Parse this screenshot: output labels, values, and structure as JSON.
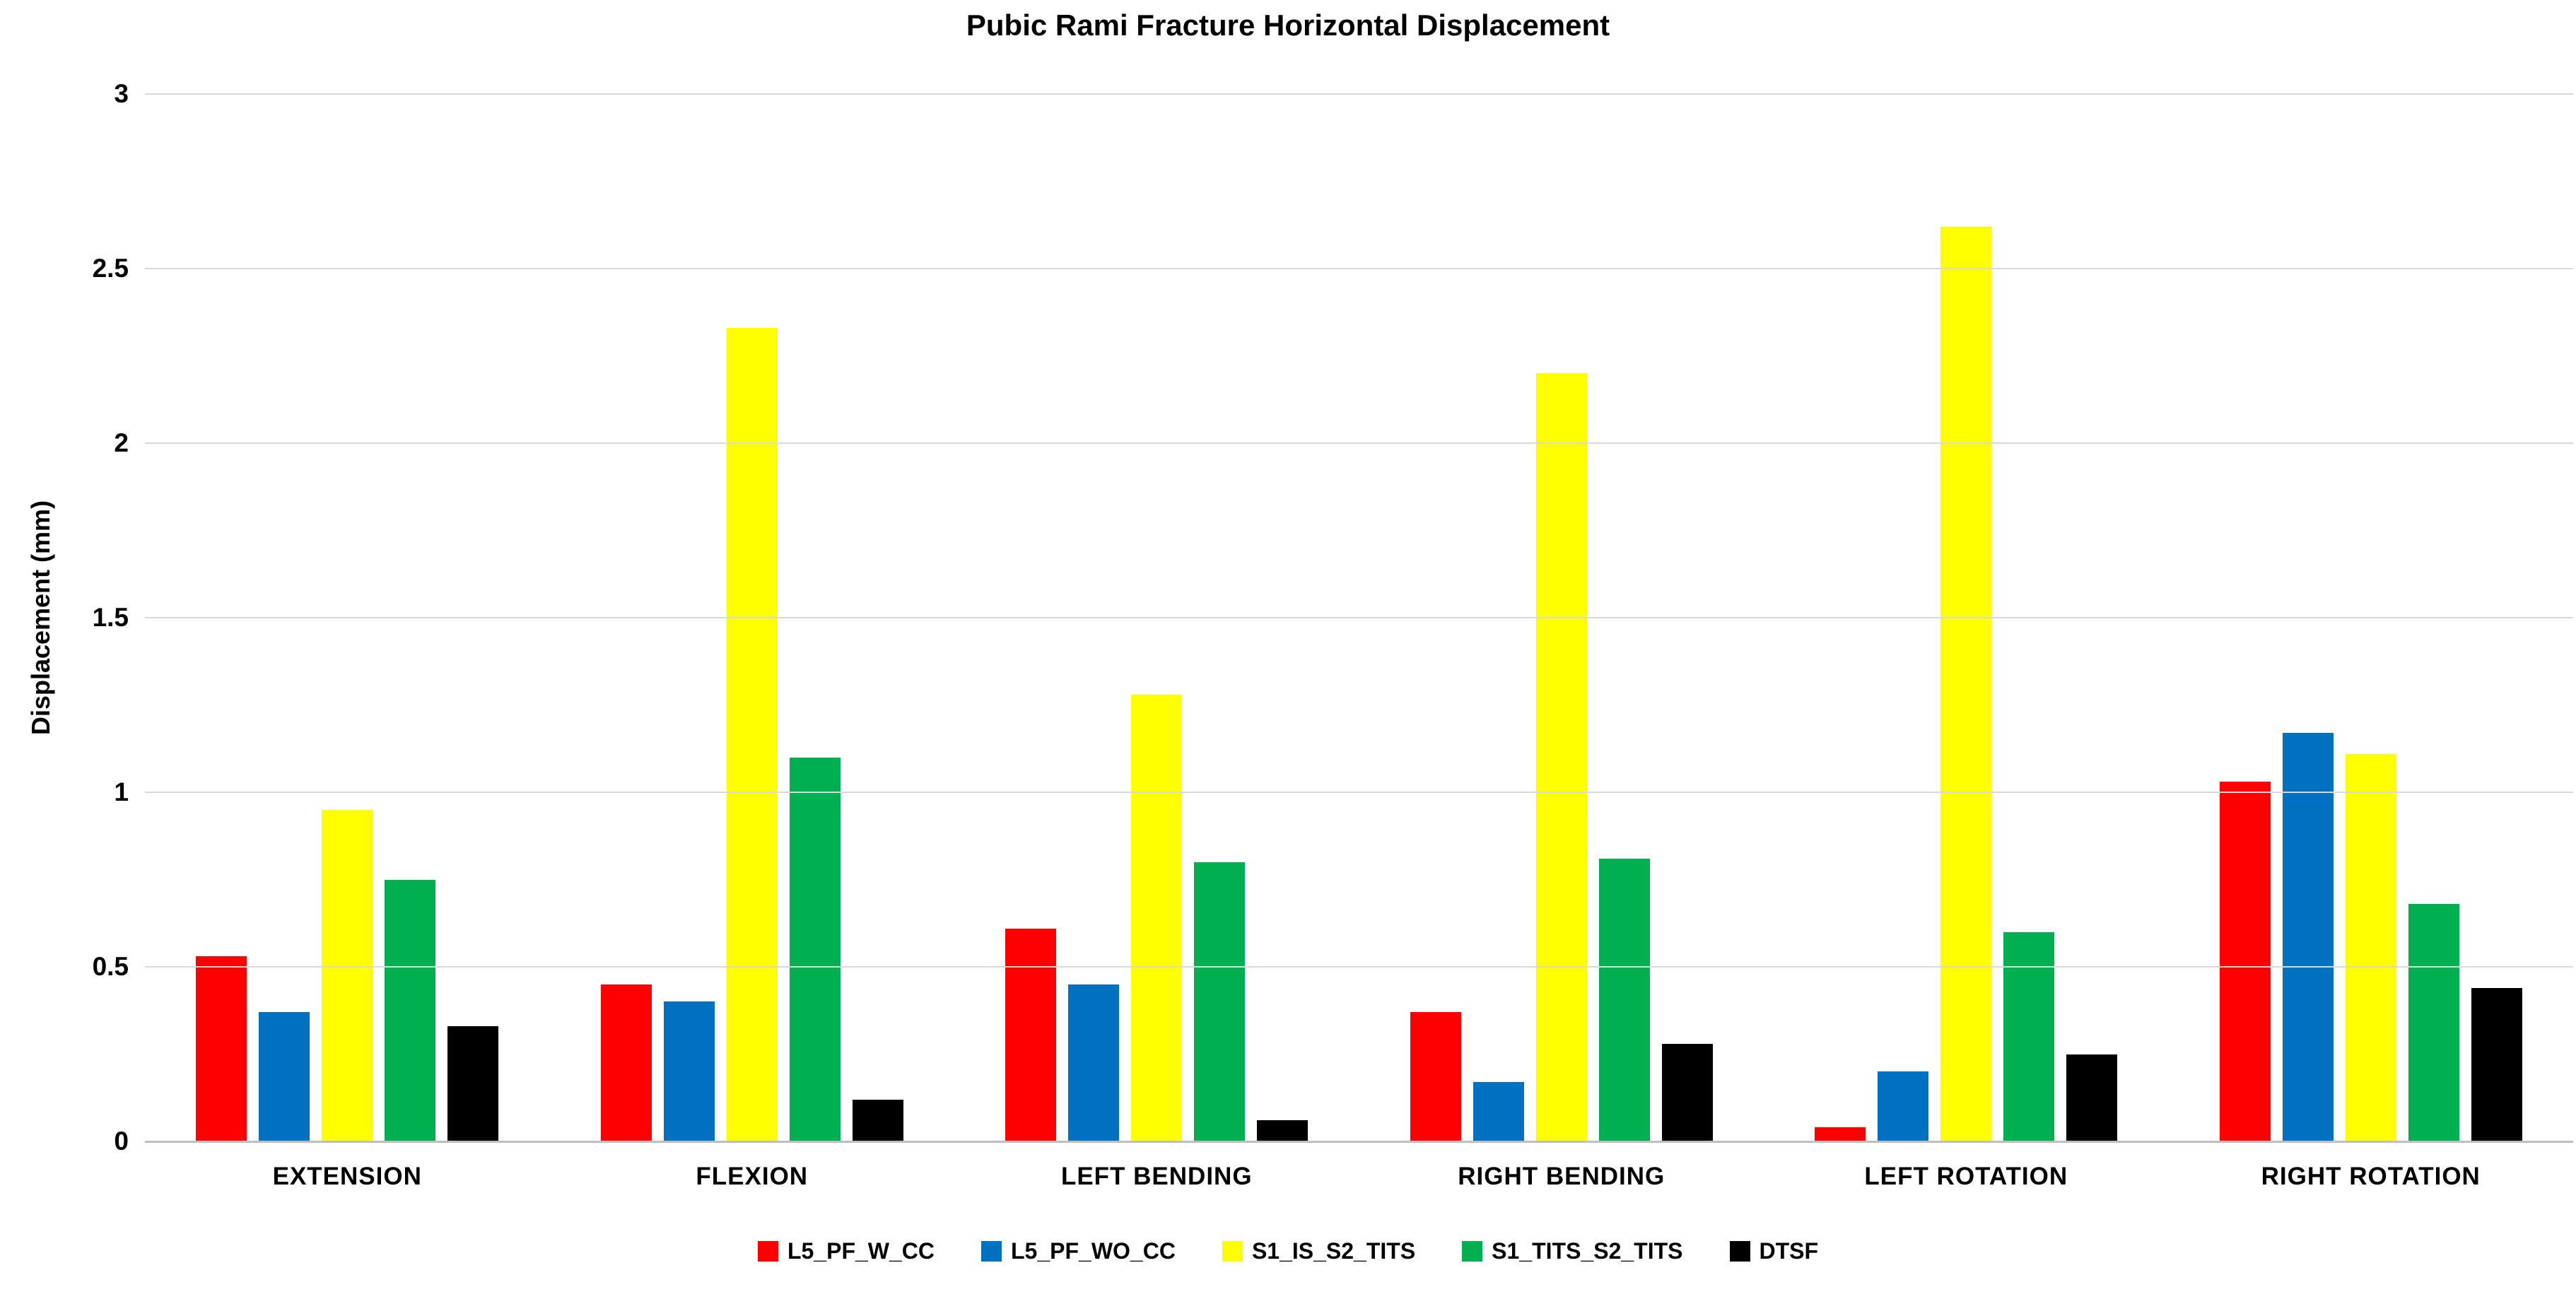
{
  "chart_data": {
    "type": "bar",
    "title": "Pubic Rami Fracture Horizontal Displacement",
    "xlabel": "",
    "ylabel": "Displacement (mm)",
    "ylim": [
      0,
      3
    ],
    "ytick_step": 0.5,
    "yticks": [
      "0",
      "0.5",
      "1",
      "1.5",
      "2",
      "2.5",
      "3"
    ],
    "grid": true,
    "legend_position": "bottom",
    "categories": [
      "EXTENSION",
      "FLEXION",
      "LEFT BENDING",
      "RIGHT BENDING",
      "LEFT ROTATION",
      "RIGHT ROTATION"
    ],
    "series": [
      {
        "name": "L5_PF_W_CC",
        "color": "#FF0000",
        "values": [
          0.53,
          0.45,
          0.61,
          0.37,
          0.04,
          1.03
        ]
      },
      {
        "name": "L5_PF_WO_CC",
        "color": "#0070C0",
        "values": [
          0.37,
          0.4,
          0.45,
          0.17,
          0.2,
          1.17
        ]
      },
      {
        "name": "S1_IS_S2_TITS",
        "color": "#FFFF00",
        "values": [
          0.95,
          2.33,
          1.28,
          2.2,
          2.62,
          1.11
        ]
      },
      {
        "name": "S1_TITS_S2_TITS",
        "color": "#00B050",
        "values": [
          0.75,
          1.1,
          0.8,
          0.81,
          0.6,
          0.68
        ]
      },
      {
        "name": "DTSF",
        "color": "#000000",
        "values": [
          0.33,
          0.12,
          0.06,
          0.28,
          0.25,
          0.44
        ]
      }
    ],
    "gridline_color": "#d9d9d9",
    "axis_line_color": "#bfbfbf",
    "background_color": "#ffffff"
  }
}
